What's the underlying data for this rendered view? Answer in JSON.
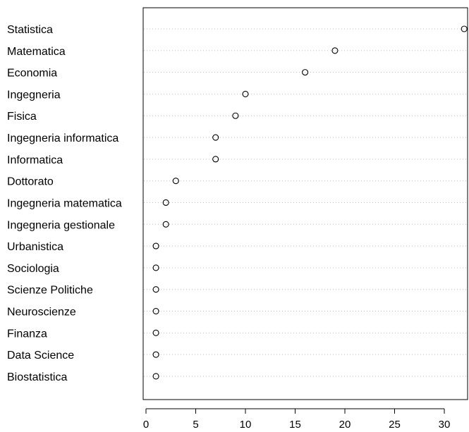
{
  "chart_data": {
    "type": "scatter",
    "subtype": "dotchart",
    "title": "",
    "xlabel": "",
    "ylabel": "",
    "categories": [
      "Statistica",
      "Matematica",
      "Economia",
      "Ingegneria",
      "Fisica",
      "Ingegneria informatica",
      "Informatica",
      "Dottorato",
      "Ingegneria matematica",
      "Ingegneria gestionale",
      "Urbanistica",
      "Sociologia",
      "Scienze Politiche",
      "Neuroscienze",
      "Finanza",
      "Data Science",
      "Biostatistica"
    ],
    "values": [
      32,
      19,
      16,
      10,
      9,
      7,
      7,
      3,
      2,
      2,
      1,
      1,
      1,
      1,
      1,
      1,
      1
    ],
    "xlim": [
      0,
      32
    ],
    "x_ticks": [
      0,
      5,
      10,
      15,
      20,
      25,
      30
    ],
    "grid": "dotted horizontal lines per category",
    "legend": "none",
    "colors": {
      "marker": "#000000",
      "guide": "#bebebe",
      "axis": "#000000"
    }
  }
}
